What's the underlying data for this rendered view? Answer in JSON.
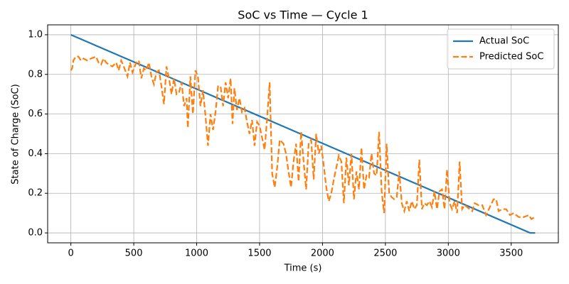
{
  "chart_data": {
    "type": "line",
    "title": "SoC vs Time — Cycle 1",
    "x_label": "Time (s)",
    "y_label": "State of Charge (SoC)",
    "xlim": [
      -184.5,
      3874.5
    ],
    "ylim": [
      -0.05,
      1.05
    ],
    "xticks": [
      0,
      500,
      1000,
      1500,
      2000,
      2500,
      3000,
      3500
    ],
    "yticks": [
      {
        "value": 0,
        "label": "0.0"
      },
      {
        "value": 0.2,
        "label": "0.2"
      },
      {
        "value": 0.4,
        "label": "0.4"
      },
      {
        "value": 0.6,
        "label": "0.6"
      },
      {
        "value": 0.8,
        "label": "0.8"
      },
      {
        "value": 1,
        "label": "1.0"
      }
    ],
    "grid": true,
    "legend": "upper right",
    "series": [
      {
        "name": "Actual SoC",
        "color": "#1f77b4",
        "dash": "solid",
        "x": [
          0,
          3650,
          3690
        ],
        "values": [
          1.0,
          0.0,
          0.0
        ]
      },
      {
        "name": "Predicted SoC",
        "color": "#ff7f0e",
        "dash": "dashed",
        "x": [
          0,
          10,
          20,
          40,
          60,
          80,
          100,
          130,
          160,
          200,
          220,
          240,
          260,
          280,
          300,
          330,
          360,
          380,
          400,
          420,
          450,
          470,
          490,
          520,
          540,
          560,
          580,
          600,
          620,
          640,
          660,
          680,
          700,
          720,
          740,
          760,
          780,
          800,
          820,
          840,
          860,
          880,
          900,
          920,
          930,
          950,
          970,
          990,
          1010,
          1030,
          1050,
          1070,
          1090,
          1110,
          1130,
          1150,
          1170,
          1190,
          1210,
          1230,
          1250,
          1270,
          1285,
          1300,
          1320,
          1340,
          1360,
          1380,
          1400,
          1420,
          1440,
          1460,
          1480,
          1500,
          1520,
          1540,
          1560,
          1580,
          1600,
          1620,
          1640,
          1660,
          1690,
          1710,
          1730,
          1750,
          1770,
          1790,
          1810,
          1830,
          1850,
          1870,
          1890,
          1910,
          1930,
          1950,
          1970,
          1990,
          2010,
          2030,
          2050,
          2070,
          2090,
          2110,
          2130,
          2150,
          2170,
          2190,
          2210,
          2230,
          2250,
          2270,
          2290,
          2310,
          2330,
          2350,
          2370,
          2390,
          2410,
          2430,
          2450,
          2470,
          2490,
          2510,
          2530,
          2550,
          2570,
          2590,
          2610,
          2630,
          2650,
          2670,
          2690,
          2710,
          2730,
          2750,
          2770,
          2790,
          2810,
          2830,
          2850,
          2870,
          2890,
          2910,
          2930,
          2950,
          2970,
          2990,
          3010,
          3030,
          3050,
          3070,
          3090,
          3110,
          3130,
          3150,
          3170,
          3190,
          3210,
          3240,
          3270,
          3300,
          3330,
          3360,
          3380,
          3400,
          3430,
          3460,
          3490,
          3520,
          3560,
          3600,
          3640,
          3660,
          3690
        ],
        "values": [
          0.82,
          0.83,
          0.87,
          0.89,
          0.89,
          0.87,
          0.88,
          0.87,
          0.88,
          0.89,
          0.86,
          0.85,
          0.88,
          0.86,
          0.85,
          0.84,
          0.86,
          0.82,
          0.87,
          0.84,
          0.79,
          0.86,
          0.81,
          0.86,
          0.87,
          0.78,
          0.83,
          0.82,
          0.86,
          0.79,
          0.75,
          0.81,
          0.82,
          0.74,
          0.65,
          0.84,
          0.78,
          0.7,
          0.78,
          0.7,
          0.71,
          0.76,
          0.64,
          0.68,
          0.53,
          0.79,
          0.6,
          0.82,
          0.79,
          0.64,
          0.72,
          0.59,
          0.44,
          0.6,
          0.52,
          0.61,
          0.74,
          0.74,
          0.64,
          0.76,
          0.68,
          0.78,
          0.55,
          0.73,
          0.62,
          0.68,
          0.61,
          0.63,
          0.56,
          0.5,
          0.57,
          0.44,
          0.56,
          0.54,
          0.48,
          0.42,
          0.58,
          0.76,
          0.3,
          0.23,
          0.33,
          0.47,
          0.45,
          0.4,
          0.31,
          0.23,
          0.36,
          0.45,
          0.26,
          0.51,
          0.36,
          0.22,
          0.45,
          0.47,
          0.27,
          0.5,
          0.4,
          0.44,
          0.34,
          0.23,
          0.16,
          0.2,
          0.27,
          0.33,
          0.39,
          0.36,
          0.15,
          0.38,
          0.24,
          0.4,
          0.17,
          0.31,
          0.22,
          0.43,
          0.22,
          0.29,
          0.28,
          0.4,
          0.3,
          0.29,
          0.51,
          0.21,
          0.1,
          0.45,
          0.2,
          0.18,
          0.17,
          0.18,
          0.31,
          0.15,
          0.11,
          0.16,
          0.11,
          0.16,
          0.12,
          0.14,
          0.37,
          0.12,
          0.15,
          0.14,
          0.16,
          0.13,
          0.21,
          0.12,
          0.21,
          0.22,
          0.12,
          0.32,
          0.15,
          0.12,
          0.16,
          0.1,
          0.36,
          0.12,
          0.14,
          0.13,
          0.12,
          0.11,
          0.15,
          0.14,
          0.14,
          0.09,
          0.13,
          0.17,
          0.17,
          0.11,
          0.12,
          0.12,
          0.09,
          0.1,
          0.08,
          0.08,
          0.09,
          0.07,
          0.08
        ]
      }
    ]
  }
}
